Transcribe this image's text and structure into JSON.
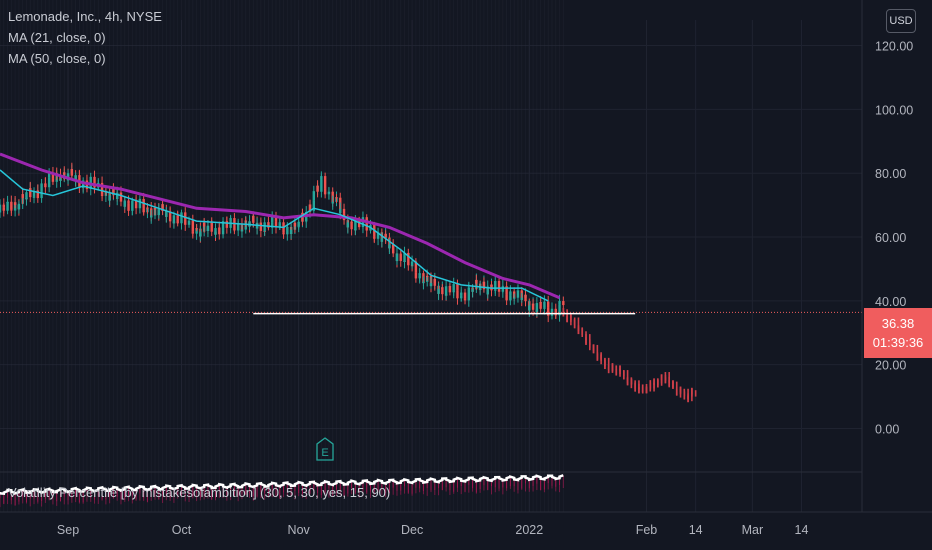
{
  "header": {
    "symbol_title": "Lemonade, Inc., 4h, NYSE",
    "ma21_label": "MA (21, close, 0)",
    "ma50_label": "MA (50, close, 0)",
    "currency_button": "USD"
  },
  "indicator": {
    "label": "Volatility Percentile [by mistakesofambition] (30, 5, 30, yes, 15, 90)"
  },
  "price_tag": {
    "price": "36.38",
    "countdown": "01:39:36"
  },
  "earnings_marker": {
    "letter": "E"
  },
  "colors": {
    "background": "#131722",
    "bull_candle": "#26a69a",
    "bear_candle": "#ef5350",
    "ma21": "#26c6da",
    "ma50": "#9c27b0",
    "support_line": "#ffffff",
    "price_tag": "#f05d5e",
    "volatility_line": "#ffffff"
  },
  "chart_data": {
    "type": "line",
    "title": "Lemonade, Inc., 4h, NYSE",
    "y_axis_ticks": [
      120,
      100,
      80,
      60,
      40,
      20,
      0
    ],
    "y_tick_labels": [
      "120.00",
      "100.00",
      "80.00",
      "60.00",
      "40.00",
      "20.00",
      "0.00"
    ],
    "ylim": [
      -13,
      128
    ],
    "x_axis_ticks": [
      "Sep",
      "Oct",
      "Nov",
      "Dec",
      "2022",
      "Feb",
      "14",
      "Mar",
      "14"
    ],
    "x_axis_tick_dates": [
      "2021-09-01",
      "2021-10-01",
      "2021-11-01",
      "2021-12-01",
      "2022-01-01",
      "2022-02-01",
      "2022-02-14",
      "2022-03-01",
      "2022-03-14"
    ],
    "xlim": [
      "2021-08-14",
      "2022-03-30"
    ],
    "current_price": 36.38,
    "ma_fast": {
      "name": "MA (21, close, 0)",
      "points": [
        [
          "2021-08-14",
          81
        ],
        [
          "2021-08-20",
          75
        ],
        [
          "2021-08-28",
          73
        ],
        [
          "2021-09-05",
          76
        ],
        [
          "2021-09-15",
          73
        ],
        [
          "2021-09-25",
          69
        ],
        [
          "2021-10-05",
          65
        ],
        [
          "2021-10-18",
          64
        ],
        [
          "2021-10-28",
          63
        ],
        [
          "2021-11-05",
          69
        ],
        [
          "2021-11-12",
          67
        ],
        [
          "2021-11-20",
          63
        ],
        [
          "2021-11-28",
          56
        ],
        [
          "2021-12-06",
          48
        ],
        [
          "2021-12-14",
          45
        ],
        [
          "2021-12-22",
          44
        ],
        [
          "2021-12-30",
          44
        ],
        [
          "2022-01-06",
          40
        ]
      ]
    },
    "ma_slow": {
      "name": "MA (50, close, 0)",
      "points": [
        [
          "2021-08-14",
          86
        ],
        [
          "2021-08-25",
          81
        ],
        [
          "2021-09-05",
          77
        ],
        [
          "2021-09-15",
          75
        ],
        [
          "2021-09-25",
          72
        ],
        [
          "2021-10-05",
          69
        ],
        [
          "2021-10-18",
          68
        ],
        [
          "2021-10-28",
          66
        ],
        [
          "2021-11-05",
          67
        ],
        [
          "2021-11-15",
          66
        ],
        [
          "2021-11-25",
          63
        ],
        [
          "2021-12-05",
          58
        ],
        [
          "2021-12-15",
          52
        ],
        [
          "2021-12-25",
          47
        ],
        [
          "2022-01-01",
          45
        ],
        [
          "2022-01-09",
          41
        ]
      ]
    },
    "price_path": {
      "points": [
        [
          "2021-08-14",
          68
        ],
        [
          "2021-08-22",
          73
        ],
        [
          "2021-08-30",
          80
        ],
        [
          "2021-09-08",
          76
        ],
        [
          "2021-09-18",
          70
        ],
        [
          "2021-09-28",
          67
        ],
        [
          "2021-10-06",
          62
        ],
        [
          "2021-10-16",
          64
        ],
        [
          "2021-10-26",
          64
        ],
        [
          "2021-10-31",
          62
        ],
        [
          "2021-11-04",
          70
        ],
        [
          "2021-11-07",
          77
        ],
        [
          "2021-11-11",
          71
        ],
        [
          "2021-11-13",
          65
        ],
        [
          "2021-11-20",
          63
        ],
        [
          "2021-11-27",
          55
        ],
        [
          "2021-12-06",
          45
        ],
        [
          "2021-12-14",
          42
        ],
        [
          "2021-12-20",
          45
        ],
        [
          "2021-12-28",
          42
        ],
        [
          "2022-01-03",
          38
        ],
        [
          "2022-01-07",
          37
        ],
        [
          "2022-01-10",
          39
        ]
      ]
    },
    "projection_path": {
      "points": [
        [
          "2022-01-10",
          36
        ],
        [
          "2022-01-13",
          33
        ],
        [
          "2022-01-16",
          28
        ],
        [
          "2022-01-19",
          23
        ],
        [
          "2022-01-22",
          19
        ],
        [
          "2022-01-25",
          18
        ],
        [
          "2022-01-28",
          14
        ],
        [
          "2022-01-31",
          12
        ],
        [
          "2022-02-03",
          14
        ],
        [
          "2022-02-06",
          16
        ],
        [
          "2022-02-09",
          12
        ],
        [
          "2022-02-12",
          10
        ],
        [
          "2022-02-14",
          12
        ]
      ]
    },
    "support_level": {
      "value": 36,
      "from": "2021-10-20",
      "to": "2022-01-29"
    },
    "earnings_event": "2021-11-08"
  }
}
